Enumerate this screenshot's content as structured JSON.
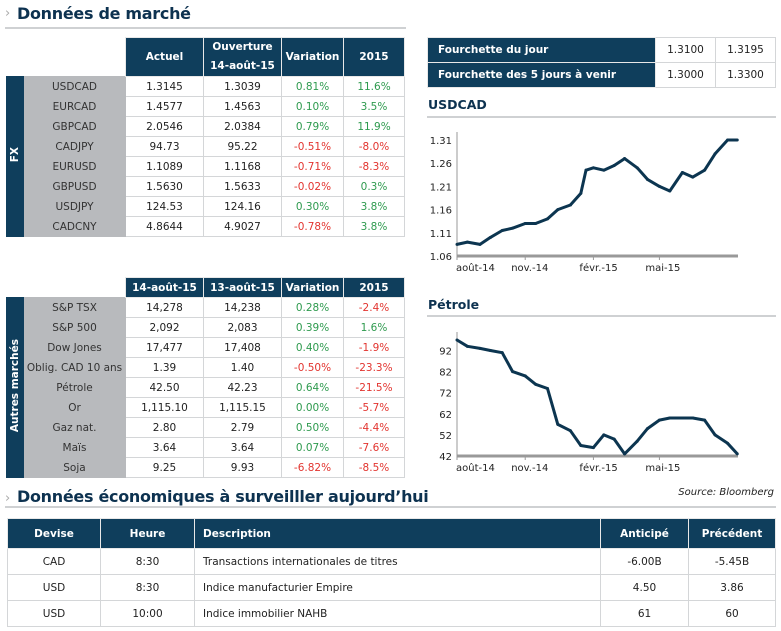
{
  "market": {
    "title": "Données de marché"
  },
  "fx": {
    "side_label": "FX",
    "headers": [
      "Actuel",
      "Ouverture",
      "14-août-15",
      "Variation",
      "2015"
    ],
    "rows": [
      {
        "name": "USDCAD",
        "cur": "1.3145",
        "open": "1.3039",
        "chg": "0.81%",
        "ytd": "11.6%"
      },
      {
        "name": "EURCAD",
        "cur": "1.4577",
        "open": "1.4563",
        "chg": "0.10%",
        "ytd": "3.5%"
      },
      {
        "name": "GBPCAD",
        "cur": "2.0546",
        "open": "2.0384",
        "chg": "0.79%",
        "ytd": "11.9%"
      },
      {
        "name": "CADJPY",
        "cur": "94.73",
        "open": "95.22",
        "chg": "-0.51%",
        "ytd": "-8.0%"
      },
      {
        "name": "EURUSD",
        "cur": "1.1089",
        "open": "1.1168",
        "chg": "-0.71%",
        "ytd": "-8.3%"
      },
      {
        "name": "GBPUSD",
        "cur": "1.5630",
        "open": "1.5633",
        "chg": "-0.02%",
        "ytd": "0.3%"
      },
      {
        "name": "USDJPY",
        "cur": "124.53",
        "open": "124.16",
        "chg": "0.30%",
        "ytd": "3.8%"
      },
      {
        "name": "CADCNY",
        "cur": "4.8644",
        "open": "4.9027",
        "chg": "-0.78%",
        "ytd": "3.8%"
      }
    ]
  },
  "other": {
    "side_label": "Autres marchés",
    "headers": [
      "14-août-15",
      "13-août-15",
      "Variation",
      "2015"
    ],
    "rows": [
      {
        "name": "S&P TSX",
        "cur": "14,278",
        "prev": "14,238",
        "chg": "0.28%",
        "ytd": "-2.4%"
      },
      {
        "name": "S&P 500",
        "cur": "2,092",
        "prev": "2,083",
        "chg": "0.39%",
        "ytd": "1.6%"
      },
      {
        "name": "Dow Jones",
        "cur": "17,477",
        "prev": "17,408",
        "chg": "0.40%",
        "ytd": "-1.9%"
      },
      {
        "name": "Oblig. CAD 10 ans",
        "cur": "1.39",
        "prev": "1.40",
        "chg": "-0.50%",
        "ytd": "-23.3%"
      },
      {
        "name": "Pétrole",
        "cur": "42.50",
        "prev": "42.23",
        "chg": "0.64%",
        "ytd": "-21.5%"
      },
      {
        "name": "Or",
        "cur": "1,115.10",
        "prev": "1,115.15",
        "chg": "0.00%",
        "ytd": "-5.7%"
      },
      {
        "name": "Gaz nat.",
        "cur": "2.80",
        "prev": "2.79",
        "chg": "0.50%",
        "ytd": "-4.4%"
      },
      {
        "name": "Maïs",
        "cur": "3.64",
        "prev": "3.64",
        "chg": "0.07%",
        "ytd": "-7.6%"
      },
      {
        "name": "Soja",
        "cur": "9.25",
        "prev": "9.93",
        "chg": "-6.82%",
        "ytd": "-8.5%"
      }
    ]
  },
  "ranges": [
    {
      "label": "Fourchette du jour",
      "low": "1.3100",
      "high": "1.3195"
    },
    {
      "label": "Fourchette des 5 jours à venir",
      "low": "1.3000",
      "high": "1.3300"
    }
  ],
  "colors": {
    "positive": "#2e9a4e",
    "negative": "#e2342f",
    "header": "#0f3e5c",
    "line": "#0c3550"
  },
  "chart_data": [
    {
      "type": "line",
      "title": "USDCAD",
      "ylim": [
        1.06,
        1.31
      ],
      "yticks": [
        "1.31",
        "1.26",
        "1.21",
        "1.16",
        "1.11",
        "1.06"
      ],
      "xticks": [
        "août-14",
        "nov.-14",
        "févr.-15",
        "mai-15"
      ],
      "xlim": [
        "2014-08-01",
        "2015-08-15"
      ],
      "x": [
        "2014-08-01",
        "2014-08-15",
        "2014-09-01",
        "2014-09-15",
        "2014-10-01",
        "2014-10-15",
        "2014-11-01",
        "2014-11-15",
        "2014-12-01",
        "2014-12-15",
        "2015-01-01",
        "2015-01-15",
        "2015-01-22",
        "2015-02-01",
        "2015-02-15",
        "2015-03-01",
        "2015-03-15",
        "2015-04-01",
        "2015-04-15",
        "2015-05-01",
        "2015-05-15",
        "2015-06-01",
        "2015-06-15",
        "2015-07-01",
        "2015-07-15",
        "2015-08-01",
        "2015-08-14"
      ],
      "y": [
        1.085,
        1.09,
        1.085,
        1.1,
        1.115,
        1.12,
        1.13,
        1.13,
        1.14,
        1.16,
        1.17,
        1.195,
        1.245,
        1.25,
        1.245,
        1.255,
        1.27,
        1.25,
        1.225,
        1.21,
        1.2,
        1.24,
        1.23,
        1.245,
        1.28,
        1.31,
        1.31
      ]
    },
    {
      "type": "line",
      "title": "Pétrole",
      "ylim": [
        42,
        97
      ],
      "yticks": [
        "92",
        "82",
        "72",
        "62",
        "52",
        "42"
      ],
      "xticks": [
        "août-14",
        "nov.-14",
        "févr.-15",
        "mai-15"
      ],
      "xlim": [
        "2014-08-01",
        "2015-08-15"
      ],
      "x": [
        "2014-08-01",
        "2014-08-15",
        "2014-09-01",
        "2014-09-15",
        "2014-10-01",
        "2014-10-15",
        "2014-11-01",
        "2014-11-15",
        "2014-12-01",
        "2014-12-15",
        "2015-01-01",
        "2015-01-15",
        "2015-02-01",
        "2015-02-15",
        "2015-03-01",
        "2015-03-15",
        "2015-04-01",
        "2015-04-15",
        "2015-05-01",
        "2015-05-15",
        "2015-06-01",
        "2015-06-15",
        "2015-07-01",
        "2015-07-15",
        "2015-08-01",
        "2015-08-14"
      ],
      "y": [
        97,
        94,
        93,
        92,
        91,
        82,
        80,
        76,
        74,
        57,
        54,
        47,
        46,
        52,
        50,
        43,
        49,
        55,
        59,
        60,
        60,
        60,
        59,
        52,
        48,
        43
      ]
    }
  ],
  "source": "Source: Bloomberg",
  "eco": {
    "title": "Données économiques à surveilller aujourd’hui",
    "headers": [
      "Devise",
      "Heure",
      "Description",
      "Anticipé",
      "Précédent"
    ],
    "rows": [
      [
        "CAD",
        "8:30",
        "Transactions  internationales de titres",
        "-6.00B",
        "-5.45B"
      ],
      [
        "USD",
        "8:30",
        "Indice manufacturier Empire",
        "4.50",
        "3.86"
      ],
      [
        "USD",
        "10:00",
        "Indice immobilier NAHB",
        "61",
        "60"
      ]
    ]
  }
}
